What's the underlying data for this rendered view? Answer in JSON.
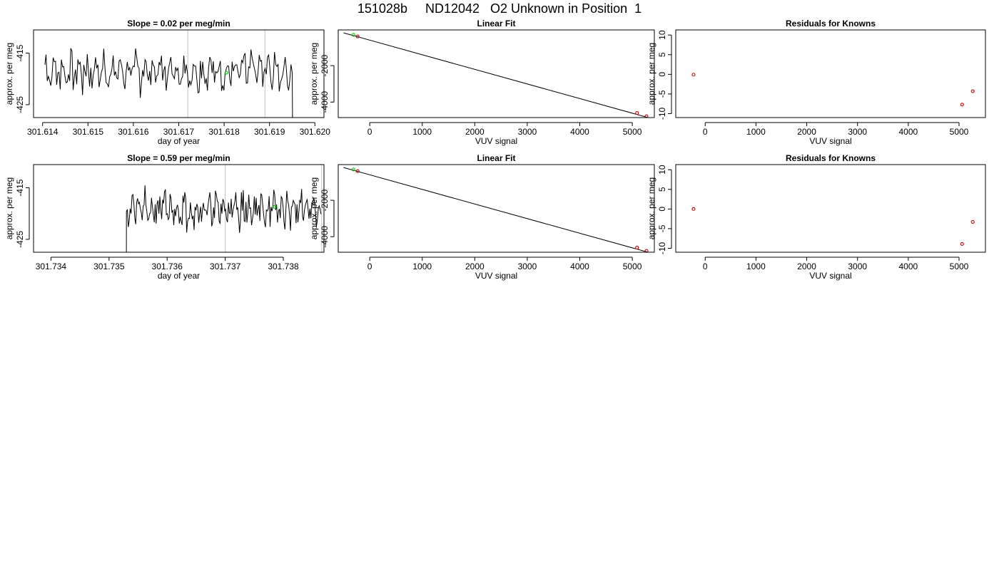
{
  "title": "151028b     ND12042   O2 Unknown in Position  1",
  "colors": {
    "line": "#000000",
    "marker_unknown": "#00cc00",
    "marker_known": "#cc0000",
    "event_line": "#cccccc",
    "frame": "#000000"
  },
  "chart_data": [
    {
      "type": "line",
      "title": "Slope =  0.02  per meg/min",
      "xlabel": "day of year",
      "ylabel": "approx. per meg",
      "xlim": [
        301.6138,
        301.6202
      ],
      "ylim": [
        -427.5,
        -410.5
      ],
      "xticks": [
        "301.614",
        "301.615",
        "301.616",
        "301.617",
        "301.618",
        "301.619",
        "301.620"
      ],
      "xtick_values": [
        301.614,
        301.615,
        301.616,
        301.617,
        301.618,
        301.619,
        301.62
      ],
      "yticks": [
        "-415",
        "-425"
      ],
      "ytick_values": [
        -415,
        -425
      ],
      "event_lines_x": [
        301.6172,
        301.6189
      ],
      "signal": {
        "x_start": 301.61405,
        "x_end": 301.6195,
        "seed": 7,
        "mean": -418.5,
        "amp": 3.6,
        "tail_to": -429
      },
      "highlight_point": {
        "x": 301.61805,
        "y": -418.8
      }
    },
    {
      "type": "line",
      "title": "Linear Fit",
      "xlabel": "VUV signal",
      "ylabel": "approx. per meg",
      "xlim": [
        -600,
        5420
      ],
      "ylim": [
        -4850,
        -40
      ],
      "xticks": [
        "0",
        "1000",
        "2000",
        "3000",
        "4000",
        "5000"
      ],
      "xtick_values": [
        0,
        1000,
        2000,
        3000,
        4000,
        5000
      ],
      "yticks": [
        "-2000",
        "-4000"
      ],
      "ytick_values": [
        -2000,
        -4000
      ],
      "fit_line": {
        "x": [
          -500,
          5300
        ],
        "y": [
          -200,
          -4850
        ]
      },
      "points_unknown": [
        {
          "x": -310,
          "y": -310
        }
      ],
      "points_known": [
        {
          "x": -230,
          "y": -400
        },
        {
          "x": 5090,
          "y": -4600
        },
        {
          "x": 5270,
          "y": -4780
        }
      ]
    },
    {
      "type": "scatter",
      "title": "Residuals for Knowns",
      "xlabel": "VUV signal",
      "ylabel": "approx. per meg",
      "xlim": [
        -580,
        5520
      ],
      "ylim": [
        -11,
        11.3
      ],
      "xticks": [
        "0",
        "1000",
        "2000",
        "3000",
        "4000",
        "5000"
      ],
      "xtick_values": [
        0,
        1000,
        2000,
        3000,
        4000,
        5000
      ],
      "yticks": [
        "10",
        "5",
        "0",
        "-5",
        "-10"
      ],
      "ytick_values": [
        10,
        5,
        0,
        -5,
        -10
      ],
      "points_known": [
        {
          "x": -230,
          "y": -0.1
        },
        {
          "x": 5060,
          "y": -7.7
        },
        {
          "x": 5270,
          "y": -4.3
        }
      ]
    },
    {
      "type": "line",
      "title": "Slope =  0.59  per meg/min",
      "xlabel": "day of year",
      "ylabel": "approx. per meg",
      "xlim": [
        301.7337,
        301.7387
      ],
      "ylim": [
        -427.5,
        -410.5
      ],
      "xticks": [
        "301.734",
        "301.735",
        "301.736",
        "301.737",
        "301.738"
      ],
      "xtick_values": [
        301.734,
        301.735,
        301.736,
        301.737,
        301.738
      ],
      "yticks": [
        "-415",
        "-425"
      ],
      "ytick_values": [
        -415,
        -425
      ],
      "event_lines_x": [
        301.737,
        301.73866
      ],
      "signal": {
        "x_start": 301.7353,
        "x_end": 301.73865,
        "seed": 21,
        "mean": -419.2,
        "amp": 3.2,
        "head_from": -428
      },
      "highlight_point": {
        "x": 301.73785,
        "y": -418.7
      }
    },
    {
      "type": "line",
      "title": "Linear Fit",
      "xlabel": "VUV signal",
      "ylabel": "approx. per meg",
      "xlim": [
        -600,
        5420
      ],
      "ylim": [
        -4850,
        -40
      ],
      "xticks": [
        "0",
        "1000",
        "2000",
        "3000",
        "4000",
        "5000"
      ],
      "xtick_values": [
        0,
        1000,
        2000,
        3000,
        4000,
        5000
      ],
      "yticks": [
        "-2000",
        "-4000"
      ],
      "ytick_values": [
        -2000,
        -4000
      ],
      "fit_line": {
        "x": [
          -500,
          5300
        ],
        "y": [
          -200,
          -4850
        ]
      },
      "points_unknown": [
        {
          "x": -310,
          "y": -310
        }
      ],
      "points_known": [
        {
          "x": -230,
          "y": -400
        },
        {
          "x": 5090,
          "y": -4600
        },
        {
          "x": 5270,
          "y": -4780
        }
      ]
    },
    {
      "type": "scatter",
      "title": "Residuals for Knowns",
      "xlabel": "VUV signal",
      "ylabel": "approx. per meg",
      "xlim": [
        -580,
        5520
      ],
      "ylim": [
        -11,
        11.3
      ],
      "xticks": [
        "0",
        "1000",
        "2000",
        "3000",
        "4000",
        "5000"
      ],
      "xtick_values": [
        0,
        1000,
        2000,
        3000,
        4000,
        5000
      ],
      "yticks": [
        "10",
        "5",
        "0",
        "-5",
        "-10"
      ],
      "ytick_values": [
        10,
        5,
        0,
        -5,
        -10
      ],
      "points_known": [
        {
          "x": -230,
          "y": 0.0
        },
        {
          "x": 5060,
          "y": -8.9
        },
        {
          "x": 5270,
          "y": -3.3
        }
      ]
    }
  ]
}
